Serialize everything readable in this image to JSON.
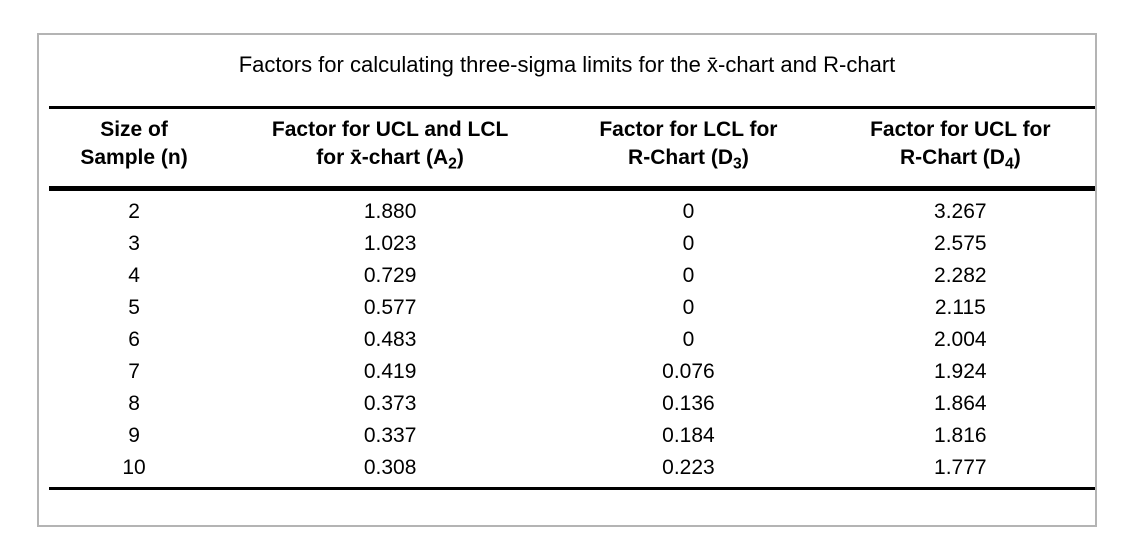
{
  "table": {
    "title": "Factors for calculating three-sigma limits for the x̄-chart and R-chart",
    "columns": [
      {
        "line1": "Size of",
        "line2_pre": "Sample (n)",
        "line2_sub": "",
        "line2_post": ""
      },
      {
        "line1": "Factor for UCL and LCL",
        "line2_pre": "for x̄-chart (A",
        "line2_sub": "2",
        "line2_post": ")"
      },
      {
        "line1": "Factor for LCL for",
        "line2_pre": "R-Chart (D",
        "line2_sub": "3",
        "line2_post": ")"
      },
      {
        "line1": "Factor for UCL for",
        "line2_pre": "R-Chart (D",
        "line2_sub": "4",
        "line2_post": ")"
      }
    ],
    "rows": [
      [
        "2",
        "1.880",
        "0",
        "3.267"
      ],
      [
        "3",
        "1.023",
        "0",
        "2.575"
      ],
      [
        "4",
        "0.729",
        "0",
        "2.282"
      ],
      [
        "5",
        "0.577",
        "0",
        "2.115"
      ],
      [
        "6",
        "0.483",
        "0",
        "2.004"
      ],
      [
        "7",
        "0.419",
        "0.076",
        "1.924"
      ],
      [
        "8",
        "0.373",
        "0.136",
        "1.864"
      ],
      [
        "9",
        "0.337",
        "0.184",
        "1.816"
      ],
      [
        "10",
        "0.308",
        "0.223",
        "1.777"
      ]
    ],
    "colors": {
      "frame_border": "#b4b4b4",
      "rule": "#000000",
      "text": "#000000",
      "background": "#ffffff"
    }
  }
}
